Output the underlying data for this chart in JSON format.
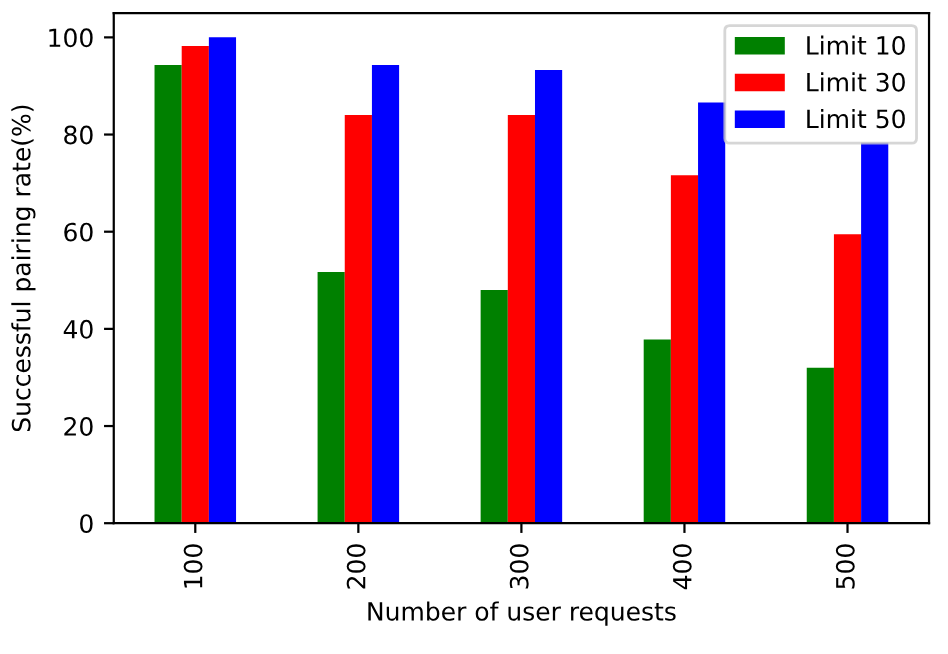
{
  "chart_data": {
    "type": "bar",
    "xlabel": "Number of user requests",
    "ylabel": "Successful pairing rate(%)",
    "categories": [
      "100",
      "200",
      "300",
      "400",
      "500"
    ],
    "series": [
      {
        "name": "Limit 10",
        "color": "#008000",
        "values": [
          94.3,
          51.7,
          48,
          37.8,
          32
        ]
      },
      {
        "name": "Limit 30",
        "color": "#ff0000",
        "values": [
          98.2,
          84,
          84,
          71.6,
          59.5
        ]
      },
      {
        "name": "Limit 50",
        "color": "#0000ff",
        "values": [
          100,
          94.3,
          93.3,
          86.6,
          78.3
        ]
      }
    ],
    "ylim": [
      0,
      105
    ],
    "yticks": [
      0,
      20,
      40,
      60,
      80,
      100
    ],
    "legend": "top right",
    "grid": false
  }
}
